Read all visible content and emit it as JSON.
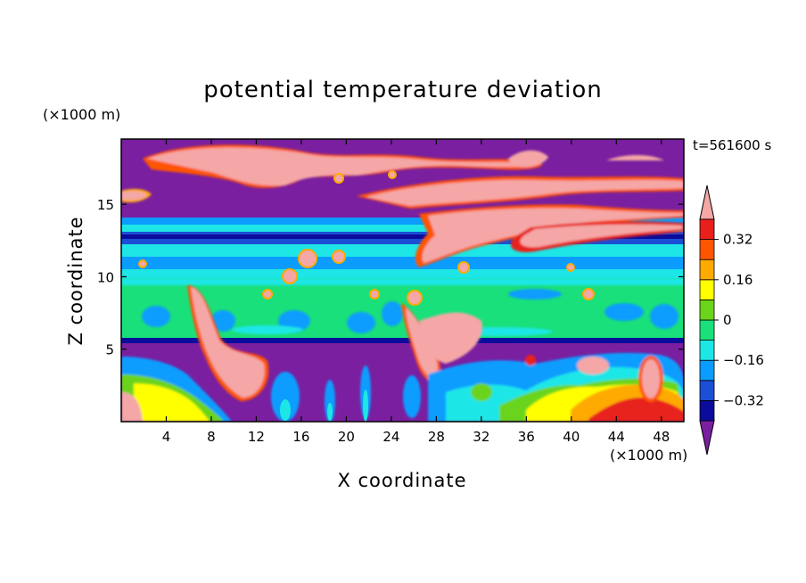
{
  "chart_data": {
    "type": "heatmap",
    "title": "potential temperature deviation",
    "xlabel": "X coordinate",
    "ylabel": "Z coordinate",
    "x_unit": "(×1000 m)",
    "y_unit": "(×1000 m)",
    "time_label": "t=561600 s",
    "xlim": [
      0,
      50
    ],
    "ylim": [
      0,
      19.5
    ],
    "x_ticks": [
      4,
      8,
      12,
      16,
      20,
      24,
      28,
      32,
      36,
      40,
      44,
      48
    ],
    "y_ticks": [
      5,
      10,
      15
    ],
    "colorbar": {
      "levels": [
        -0.4,
        -0.32,
        -0.24,
        -0.16,
        -0.08,
        0,
        0.08,
        0.16,
        0.24,
        0.32,
        0.4
      ],
      "tick_values": [
        0.32,
        0.16,
        0,
        -0.16,
        -0.32
      ],
      "tick_labels": [
        "0.32",
        "0.16",
        "0",
        "−0.16",
        "−0.32"
      ],
      "colors": [
        "#7a1fa0",
        "#0c0c9c",
        "#1a4fd6",
        "#0a9dff",
        "#1ee6e6",
        "#19e07a",
        "#6ad41a",
        "#ffff00",
        "#ffaa00",
        "#ff5500",
        "#e8201c",
        "#f4a7a6"
      ],
      "extend": "both"
    },
    "field_description_layers": [
      {
        "z_range": [
          0,
          5.8
        ],
        "dominant": "mixed low-level: purple with yellow/red/pink plumes"
      },
      {
        "z_range": [
          5.8,
          10.8
        ],
        "dominant": "green"
      },
      {
        "z_range": [
          10.8,
          14.3
        ],
        "dominant": "cyan / blue bands"
      },
      {
        "z_range": [
          14.3,
          19.5
        ],
        "dominant": "purple with pink streaks"
      }
    ]
  }
}
